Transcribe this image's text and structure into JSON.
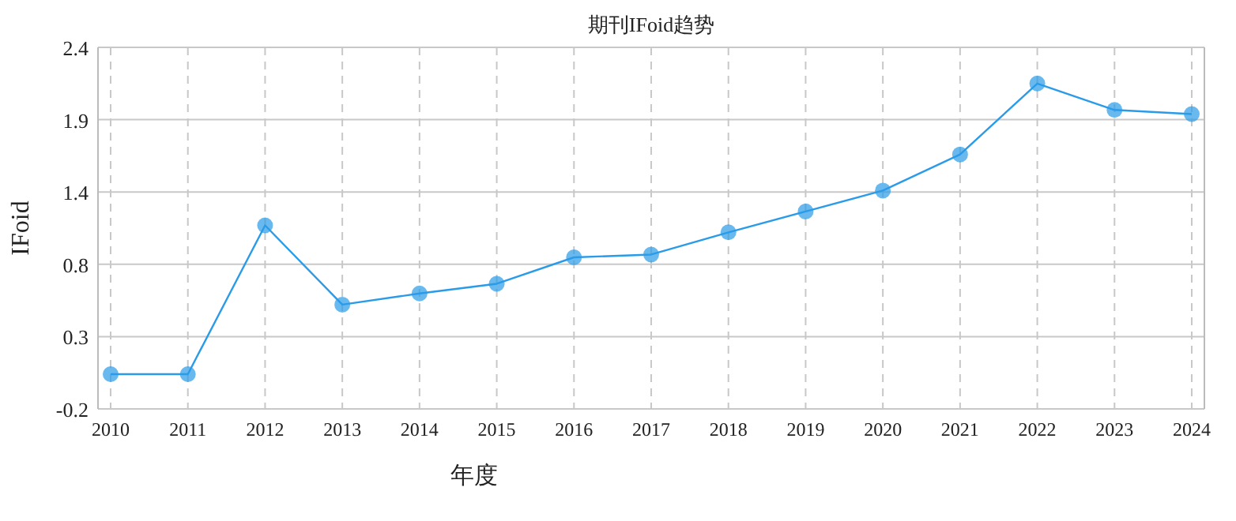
{
  "chart_data": {
    "type": "line",
    "title": "期刊IFoid趋势",
    "xlabel": "年度",
    "ylabel": "IFoid",
    "categories": [
      "2010",
      "2011",
      "2012",
      "2013",
      "2014",
      "2015",
      "2016",
      "2017",
      "2018",
      "2019",
      "2020",
      "2021",
      "2022",
      "2023",
      "2024"
    ],
    "series": [
      {
        "color": "#2a9be8",
        "values": [
          0.05,
          0.05,
          1.12,
          0.55,
          0.63,
          0.7,
          0.89,
          0.91,
          1.07,
          1.22,
          1.37,
          1.63,
          2.14,
          1.95,
          1.92
        ]
      }
    ],
    "ylim": [
      -0.2,
      2.4
    ],
    "yticks": [
      -0.2,
      {
        "value": 0.32,
        "label": "0.3"
      },
      {
        "value": 0.84,
        "label": "0.8"
      },
      {
        "value": 1.36,
        "label": "1.4"
      },
      {
        "value": 1.88,
        "label": "1.9"
      },
      2.4
    ],
    "grid": true,
    "marker": "circle",
    "line_style": "solid"
  }
}
